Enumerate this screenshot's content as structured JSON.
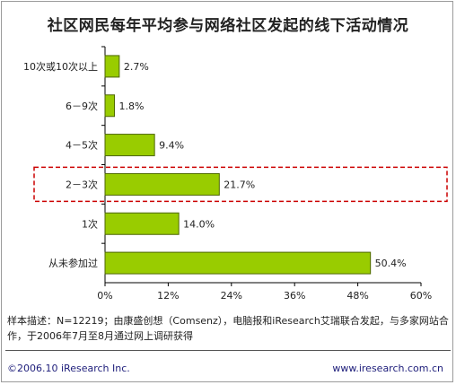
{
  "title": "社区网民每年平均参与网络社区发起的线下活动情况",
  "chart_data": {
    "type": "bar",
    "orientation": "horizontal",
    "categories": [
      "10次或10次以上",
      "6－9次",
      "4－5次",
      "2－3次",
      "1次",
      "从未参加过"
    ],
    "values": [
      2.7,
      1.8,
      9.4,
      21.7,
      14.0,
      50.4
    ],
    "value_labels": [
      "2.7%",
      "1.8%",
      "9.4%",
      "21.7%",
      "14.0%",
      "50.4%"
    ],
    "xlim": [
      0,
      60
    ],
    "x_ticks": [
      "0%",
      "12%",
      "24%",
      "36%",
      "48%",
      "60%"
    ],
    "highlighted_category": "2－3次",
    "bar_color": "#99cc00",
    "bar_border_color": "#4d6600",
    "highlight_color": "#cc0000"
  },
  "note": "样本描述：N=12219；由康盛创想（Comsenz），电脑报和iResearch艾瑞联合发起，与多家网站合作，于2006年7月至8月通过网上调研获得",
  "footer": {
    "copyright": "©2006.10 iResearch Inc.",
    "website": "www.iresearch.com.cn"
  }
}
